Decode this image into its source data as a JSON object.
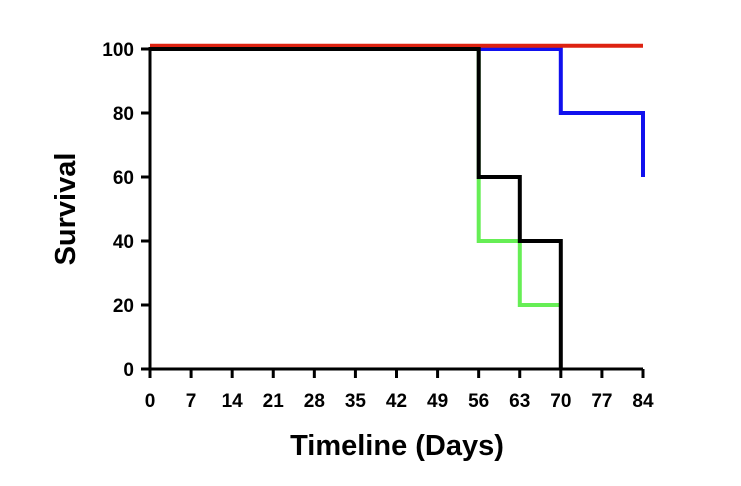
{
  "chart_data": {
    "type": "line",
    "step": true,
    "title": "",
    "xlabel": "Timeline (Days)",
    "ylabel": "Survival",
    "xlim": [
      0,
      84
    ],
    "ylim": [
      0,
      100
    ],
    "xticks": [
      0,
      7,
      14,
      21,
      28,
      35,
      42,
      49,
      56,
      63,
      70,
      77,
      84
    ],
    "yticks": [
      0,
      20,
      40,
      60,
      80,
      100
    ],
    "grid": false,
    "legend": "none",
    "series": [
      {
        "name": "green",
        "color": "#66ee55",
        "x": [
          0,
          56,
          56,
          63,
          63,
          70
        ],
        "y": [
          100,
          100,
          40,
          40,
          20,
          20
        ]
      },
      {
        "name": "blue",
        "color": "#1111ee",
        "x": [
          0,
          70,
          70,
          84,
          84
        ],
        "y": [
          100,
          100,
          80,
          80,
          60
        ]
      },
      {
        "name": "red",
        "color": "#dd2211",
        "x": [
          0,
          84
        ],
        "y": [
          101,
          101
        ]
      },
      {
        "name": "black",
        "color": "#000000",
        "x": [
          0,
          56,
          56,
          63,
          63,
          70,
          70
        ],
        "y": [
          100,
          100,
          60,
          60,
          40,
          40,
          0
        ]
      }
    ]
  }
}
